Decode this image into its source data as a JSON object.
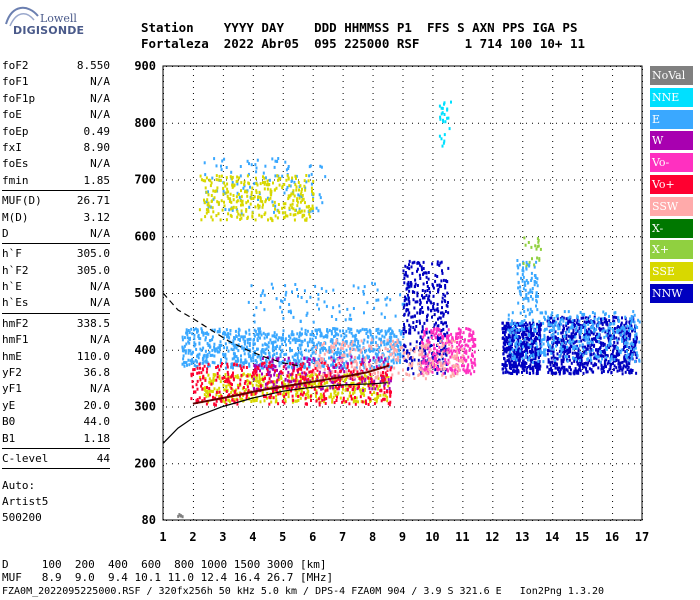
{
  "logo": {
    "line1": "Lowell",
    "line2": "DIGISONDE"
  },
  "header": {
    "labels": "Station    YYYY DAY    DDD HHMMSS P1  FFS S AXN PPS IGA PS",
    "values": "Fortaleza  2022 Abr05  095 225000 RSF      1 714 100 10+ 11"
  },
  "params": {
    "group1": [
      {
        "label": "foF2",
        "value": "8.550"
      },
      {
        "label": "foF1",
        "value": "N/A"
      },
      {
        "label": "foF1p",
        "value": "N/A"
      },
      {
        "label": "foE",
        "value": "N/A"
      },
      {
        "label": "foEp",
        "value": "0.49"
      },
      {
        "label": "fxI",
        "value": "8.90"
      },
      {
        "label": "foEs",
        "value": "N/A"
      },
      {
        "label": "fmin",
        "value": "1.85"
      }
    ],
    "group2": [
      {
        "label": "MUF(D)",
        "value": "26.71"
      },
      {
        "label": "M(D)",
        "value": "3.12"
      },
      {
        "label": "D",
        "value": "N/A"
      }
    ],
    "group3": [
      {
        "label": "h`F",
        "value": "305.0"
      },
      {
        "label": "h`F2",
        "value": "305.0"
      },
      {
        "label": "h`E",
        "value": "N/A"
      },
      {
        "label": "h`Es",
        "value": "N/A"
      }
    ],
    "group4": [
      {
        "label": "hmF2",
        "value": "338.5"
      },
      {
        "label": "hmF1",
        "value": "N/A"
      },
      {
        "label": "hmE",
        "value": "110.0"
      },
      {
        "label": "yF2",
        "value": "36.8"
      },
      {
        "label": "yF1",
        "value": "N/A"
      },
      {
        "label": "yE",
        "value": "20.0"
      },
      {
        "label": "B0",
        "value": "44.0"
      },
      {
        "label": "B1",
        "value": "1.18"
      }
    ],
    "group5": [
      {
        "label": "C-level",
        "value": "44"
      }
    ],
    "auto": [
      "Auto:",
      "Artist5",
      "500200"
    ]
  },
  "legend": [
    {
      "label": "NoVal",
      "color": "#808080"
    },
    {
      "label": "NNE",
      "color": "#00e0ff"
    },
    {
      "label": "E",
      "color": "#3aa8ff"
    },
    {
      "label": "W",
      "color": "#a800b0"
    },
    {
      "label": "Vo-",
      "color": "#ff30c0"
    },
    {
      "label": "Vo+",
      "color": "#ff0030"
    },
    {
      "label": "SSW",
      "color": "#ffaaaa"
    },
    {
      "label": "X-",
      "color": "#007800"
    },
    {
      "label": "X+",
      "color": "#90d040"
    },
    {
      "label": "SSE",
      "color": "#d8d800"
    },
    {
      "label": "NNW",
      "color": "#0000c0"
    }
  ],
  "footer": {
    "line1": "D     100  200  400  600  800 1000 1500 3000 [km]",
    "line2": "MUF   8.9  9.0  9.4 10.1 11.0 12.4 16.4 26.7 [MHz]",
    "line3": "FZA0M_2022095225000.RSF / 320fx256h 50 kHz 5.0 km / DPS-4 FZA0M 904 / 3.9 S 321.6 E   Ion2Png 1.3.20"
  },
  "chart_data": {
    "type": "scatter",
    "x_ticks": [
      1,
      2,
      3,
      4,
      5,
      6,
      7,
      8,
      9,
      10,
      11,
      12,
      13,
      14,
      15,
      16,
      17
    ],
    "y_ticks": [
      80,
      200,
      300,
      400,
      500,
      600,
      700,
      800,
      900
    ],
    "xlim": [
      1,
      17
    ],
    "ylim": [
      80,
      900
    ],
    "grid": true,
    "clusters": [
      {
        "name": "E",
        "f": [
          1.6,
          9.0
        ],
        "h": [
          370,
          440
        ],
        "density": 900
      },
      {
        "name": "E",
        "f": [
          3.8,
          9.3
        ],
        "h": [
          450,
          520
        ],
        "density": 90
      },
      {
        "name": "E",
        "f": [
          2.3,
          6.5
        ],
        "h": [
          640,
          740
        ],
        "density": 120
      },
      {
        "name": "SSE",
        "f": [
          2.2,
          6.0
        ],
        "h": [
          630,
          710
        ],
        "density": 300
      },
      {
        "name": "SSE",
        "f": [
          2.2,
          8.5
        ],
        "h": [
          310,
          360
        ],
        "density": 500
      },
      {
        "name": "NNW",
        "f": [
          9.0,
          10.5
        ],
        "h": [
          360,
          560
        ],
        "density": 350
      },
      {
        "name": "NNW",
        "f": [
          12.3,
          13.6
        ],
        "h": [
          360,
          450
        ],
        "density": 500
      },
      {
        "name": "NNW",
        "f": [
          13.8,
          16.8
        ],
        "h": [
          360,
          460
        ],
        "density": 700
      },
      {
        "name": "W",
        "f": [
          4.0,
          8.6
        ],
        "h": [
          330,
          390
        ],
        "density": 200
      },
      {
        "name": "Vo-",
        "f": [
          9.6,
          11.4
        ],
        "h": [
          360,
          440
        ],
        "density": 250
      },
      {
        "name": "Vo+",
        "f": [
          1.9,
          8.6
        ],
        "h": [
          305,
          380
        ],
        "density": 400
      },
      {
        "name": "SSW",
        "f": [
          6.0,
          11.0
        ],
        "h": [
          350,
          420
        ],
        "density": 250
      },
      {
        "name": "E",
        "f": [
          12.5,
          16.9
        ],
        "h": [
          380,
          470
        ],
        "density": 400
      },
      {
        "name": "E",
        "f": [
          12.8,
          13.5
        ],
        "h": [
          470,
          560
        ],
        "density": 80
      },
      {
        "name": "X+",
        "f": [
          13.0,
          13.6
        ],
        "h": [
          550,
          600
        ],
        "density": 20
      },
      {
        "name": "NNE",
        "f": [
          10.2,
          10.6
        ],
        "h": [
          760,
          840
        ],
        "density": 25
      },
      {
        "name": "NoVal",
        "f": [
          1.4,
          1.7
        ],
        "h": [
          90,
          95
        ],
        "density": 6
      }
    ],
    "profile_trace": {
      "f": [
        2.0,
        2.8,
        3.5,
        4.2,
        5.0,
        5.8,
        6.5,
        7.2,
        7.8,
        8.3,
        8.55
      ],
      "h": [
        305,
        313,
        320,
        328,
        335,
        342,
        348,
        354,
        360,
        368,
        372
      ]
    },
    "model_curve_lower": {
      "f": [
        1.0,
        1.5,
        2.0,
        3.0,
        4.0,
        5.0,
        6.0,
        7.0,
        8.0,
        8.5
      ],
      "h": [
        235,
        262,
        280,
        300,
        315,
        327,
        334,
        338,
        340,
        342
      ]
    },
    "model_curve_upper": {
      "f": [
        1.0,
        1.5,
        2.0,
        2.6,
        3.2,
        3.8,
        4.4,
        5.0,
        5.5
      ],
      "h": [
        500,
        470,
        455,
        435,
        415,
        400,
        387,
        377,
        372
      ]
    }
  }
}
